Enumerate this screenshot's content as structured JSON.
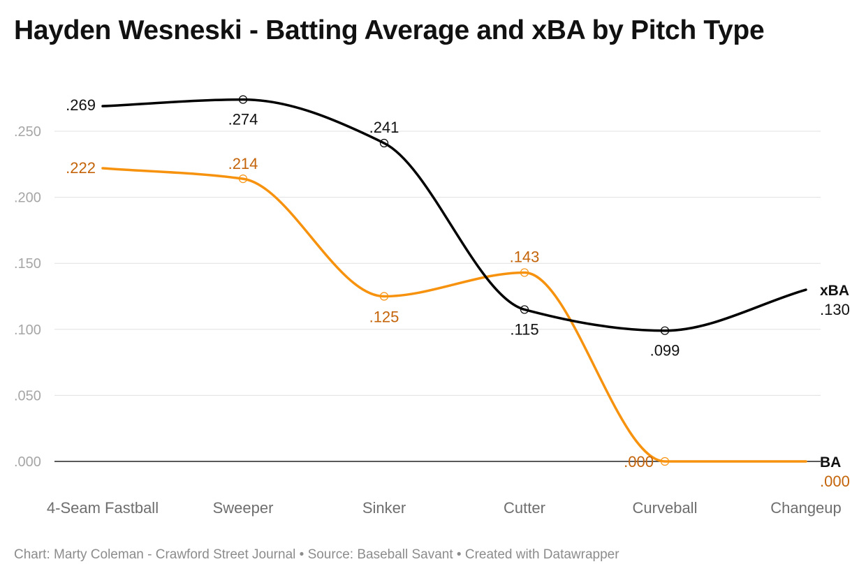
{
  "title": "Hayden Wesneski - Batting Average and xBA by Pitch Type",
  "footer": "Chart: Marty Coleman - Crawford Street Journal • Source: Baseball Savant • Created with Datawrapper",
  "colors": {
    "xBA": "#000000",
    "BA": "#f7920e",
    "BA_label": "#c4640a",
    "grid": "#e0e0e0"
  },
  "chart_data": {
    "type": "line",
    "categories": [
      "4-Seam Fastball",
      "Sweeper",
      "Sinker",
      "Cutter",
      "Curveball",
      "Changeup"
    ],
    "series": [
      {
        "name": "xBA",
        "values": [
          0.269,
          0.274,
          0.241,
          0.115,
          0.099,
          0.13
        ],
        "labels": [
          ".269",
          ".274",
          ".241",
          ".115",
          ".099",
          ".130"
        ]
      },
      {
        "name": "BA",
        "values": [
          0.222,
          0.214,
          0.125,
          0.143,
          0.0,
          0.0
        ],
        "labels": [
          ".222",
          ".214",
          ".125",
          ".143",
          ".000",
          ".000"
        ]
      }
    ],
    "yticks": [
      0,
      0.05,
      0.1,
      0.15,
      0.2,
      0.25
    ],
    "ytick_labels": [
      ".000",
      ".050",
      ".100",
      ".150",
      ".200",
      ".250"
    ],
    "ylim": [
      0,
      0.28
    ],
    "grid": true,
    "legend": "direct labels at line ends"
  }
}
